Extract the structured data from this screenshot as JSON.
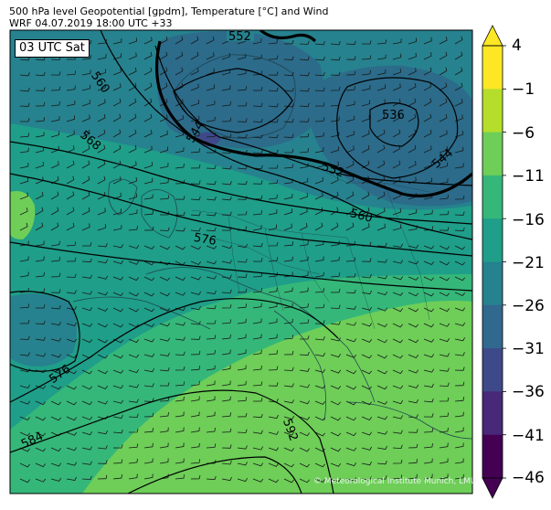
{
  "header": {
    "title_line1": "500 hPa level Geopotential [gpdm], Temperature [°C] and Wind",
    "title_line2": "WRF 04.07.2019 18:00 UTC +33"
  },
  "map": {
    "valid_time_label": "03 UTC Sat",
    "copyright": "© Meteorological Institute Munich, LMU",
    "contour_labels": [
      "552",
      "560",
      "568",
      "544",
      "536",
      "544",
      "552",
      "560",
      "576",
      "576",
      "584",
      "592"
    ]
  },
  "colorbar": {
    "labels": [
      "4",
      "−1",
      "−6",
      "−11",
      "−16",
      "−21",
      "−26",
      "−31",
      "−36",
      "−41",
      "−46"
    ],
    "colors": [
      "#fde725",
      "#b5de2b",
      "#6ece58",
      "#35b779",
      "#1f9e89",
      "#26828e",
      "#31688e",
      "#3e4989",
      "#482878",
      "#440154"
    ]
  },
  "colors": {
    "cold_core": "#2c6b8a",
    "cool": "#26828e",
    "mid": "#1f9e89",
    "mild": "#35b779",
    "warm": "#6ece58"
  }
}
